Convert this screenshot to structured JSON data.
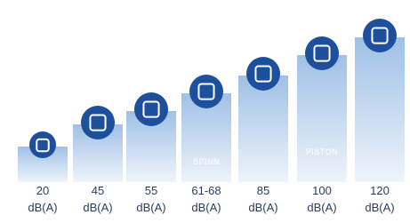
{
  "items": [
    {
      "value": "20",
      "unit": "dB(A)"
    },
    {
      "value": "45",
      "unit": "dB(A)"
    },
    {
      "value": "55",
      "unit": "dB(A)"
    },
    {
      "value": "61-68",
      "unit": "dB(A)",
      "inner": "SPINN"
    },
    {
      "value": "85",
      "unit": "dB(A)"
    },
    {
      "value": "100",
      "unit": "dB(A)",
      "inner": "PISTON"
    },
    {
      "value": "120",
      "unit": "dB(A)"
    }
  ]
}
